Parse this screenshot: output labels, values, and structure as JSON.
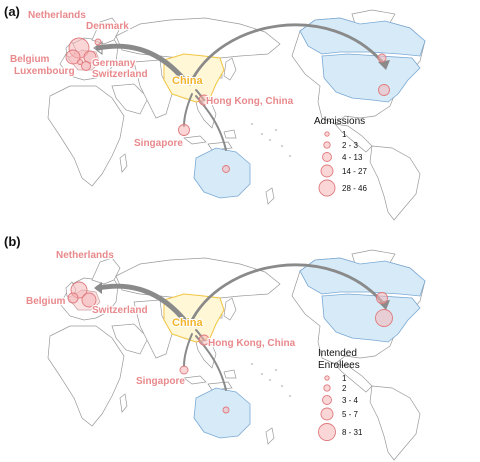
{
  "panel_a": {
    "label": "(a)",
    "labels": {
      "netherlands": "Netherlands",
      "denmark": "Denmark",
      "belgium": "Belgium",
      "luxembourg": "Luxembourg",
      "germany": "Germany",
      "switzerland": "Switzerland",
      "china": "China",
      "hongkong": "Hong Kong, China",
      "singapore": "Singapore"
    },
    "legend": {
      "title": "Admissions",
      "items": [
        "1",
        "2 - 3",
        "4 - 13",
        "14 - 27",
        "28 - 46"
      ]
    }
  },
  "panel_b": {
    "label": "(b)",
    "labels": {
      "netherlands": "Netherlands",
      "belgium": "Belgium",
      "switzerland": "Switzerland",
      "china": "China",
      "hongkong": "Hong Kong, China",
      "singapore": "Singapore"
    },
    "legend": {
      "title_line1": "Intended",
      "title_line2": "Enrollees",
      "items": [
        "1",
        "2",
        "3 - 4",
        "5 - 7",
        "8 - 31"
      ]
    }
  },
  "colors": {
    "bubble_fill": "#f5b5b7",
    "bubble_stroke": "#e07a7e",
    "label_pink": "#e8898c",
    "china_yellow": "#f2b42a",
    "highlight_blue": "#d6eaf8",
    "arrow_gray": "#8a8a8a"
  }
}
